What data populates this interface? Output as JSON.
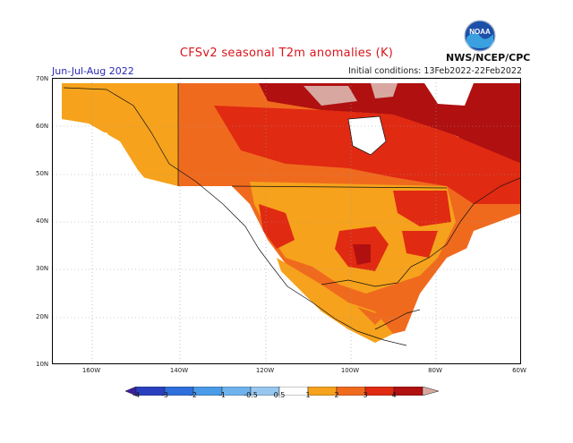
{
  "header": {
    "title": "CFSv2 seasonal T2m anomalies (K)",
    "period": "Jun-Jul-Aug 2022",
    "initial_conditions": "Initial conditions: 13Feb2022-22Feb2022",
    "agency": "NWS/NCEP/CPC",
    "logo_text": "NOAA"
  },
  "axes": {
    "lat_labels": [
      "70N",
      "60N",
      "50N",
      "40N",
      "30N",
      "20N",
      "10N"
    ],
    "lon_labels": [
      "160W",
      "140W",
      "120W",
      "100W",
      "80W",
      "60W"
    ]
  },
  "colorbar": {
    "labels": [
      "-4",
      "-3",
      "-2",
      "-1",
      "-0.5",
      "0.5",
      "1",
      "2",
      "3",
      "4"
    ],
    "colors": [
      "#3a1fa0",
      "#2a3fc0",
      "#2f6fdc",
      "#4a9be8",
      "#98c7f0",
      "#ffffff",
      "#f6a21c",
      "#f06a1e",
      "#e02a12",
      "#b01010",
      "#d8a8a0"
    ]
  },
  "anomaly_colors": {
    "c1": "#f6a21c",
    "c2": "#f06a1e",
    "c3": "#e02a12",
    "c4": "#b01010",
    "c5": "#d8a8a0"
  }
}
